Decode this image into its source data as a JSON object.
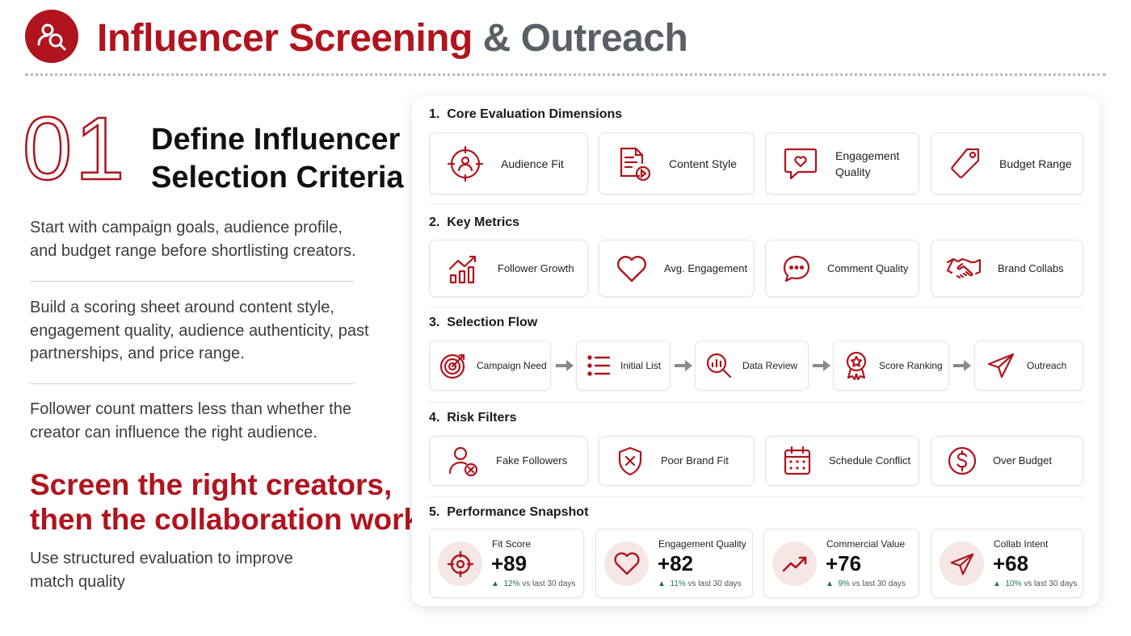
{
  "header": {
    "title_part1": "Influencer Screening",
    "title_part2": "& Outreach"
  },
  "left": {
    "step_number": "01",
    "heading_line1": "Define Influencer",
    "heading_line2": "Selection Criteria",
    "paragraphs": [
      "Start with campaign goals, audience profile, and budget range before shortlisting creators.",
      "Build a scoring sheet around content style, engagement quality, audience authenticity, past partnerships, and price range.",
      "Follower count matters less than whether the creator can influence the right audience."
    ],
    "tagline_line1": "Screen the right creators,",
    "tagline_line2": "then the collaboration works",
    "subtext": "Use structured evaluation to improve match quality"
  },
  "panel": {
    "sections": [
      {
        "number": "1.",
        "title": "Core Evaluation Dimensions",
        "items": [
          {
            "label": "Audience Fit",
            "icon": "target-user-icon"
          },
          {
            "label": "Content Style",
            "icon": "document-play-icon"
          },
          {
            "label": "Engagement Quality",
            "icon": "heart-chat-icon"
          },
          {
            "label": "Budget Range",
            "icon": "price-tag-icon"
          }
        ]
      },
      {
        "number": "2.",
        "title": "Key Metrics",
        "items": [
          {
            "label": "Follower Growth",
            "icon": "growth-chart-icon"
          },
          {
            "label": "Avg. Engagement",
            "icon": "heart-icon"
          },
          {
            "label": "Comment Quality",
            "icon": "comment-icon"
          },
          {
            "label": "Brand Collabs",
            "icon": "handshake-icon"
          }
        ]
      },
      {
        "number": "3.",
        "title": "Selection Flow",
        "items": [
          {
            "label": "Campaign Need",
            "icon": "bullseye-icon"
          },
          {
            "label": "Initial List",
            "icon": "list-icon"
          },
          {
            "label": "Data Review",
            "icon": "magnifier-chart-icon"
          },
          {
            "label": "Score Ranking",
            "icon": "award-icon"
          },
          {
            "label": "Outreach",
            "icon": "paper-plane-icon"
          }
        ]
      },
      {
        "number": "4.",
        "title": "Risk Filters",
        "items": [
          {
            "label": "Fake Followers",
            "icon": "user-x-icon"
          },
          {
            "label": "Poor Brand Fit",
            "icon": "shield-x-icon"
          },
          {
            "label": "Schedule Conflict",
            "icon": "calendar-icon"
          },
          {
            "label": "Over Budget",
            "icon": "dollar-icon"
          }
        ]
      },
      {
        "number": "5.",
        "title": "Performance Snapshot"
      }
    ],
    "snapshot": [
      {
        "label": "Fit Score",
        "value": "+89",
        "trend": "12%",
        "trend_suffix": "vs last 30 days",
        "icon": "crosshair-icon"
      },
      {
        "label": "Engagement Quality",
        "value": "+82",
        "trend": "11%",
        "trend_suffix": "vs last 30 days",
        "icon": "heart-icon"
      },
      {
        "label": "Commercial Value",
        "value": "+76",
        "trend": "9%",
        "trend_suffix": "vs last 30 days",
        "icon": "trend-up-icon"
      },
      {
        "label": "Collab Intent",
        "value": "+68",
        "trend": "10%",
        "trend_suffix": "vs last 30 days",
        "icon": "paper-plane-icon"
      }
    ]
  },
  "colors": {
    "accent": "#b0141e",
    "title_grey": "#5a5f66",
    "trend_green": "#1d7a3c"
  }
}
